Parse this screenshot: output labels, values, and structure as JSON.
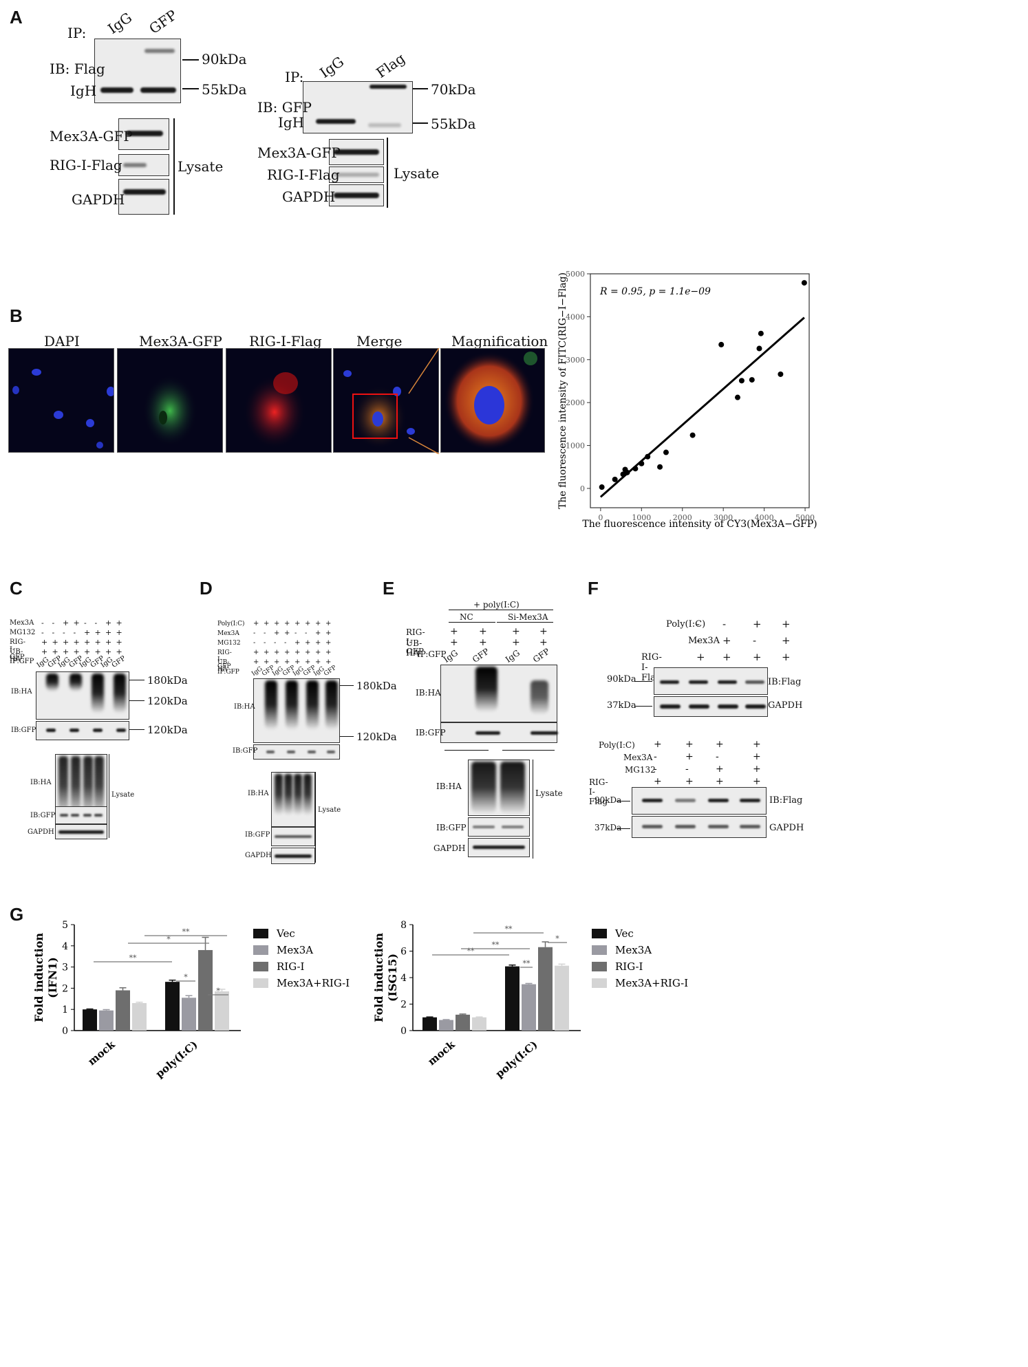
{
  "panel_labels": {
    "A": "A",
    "B": "B",
    "C": "C",
    "D": "D",
    "E": "E",
    "F": "F",
    "G": "G"
  },
  "panelA_left": {
    "ip_label": "IP:",
    "lanes": [
      "IgG",
      "GFP"
    ],
    "ib": "IB: Flag",
    "igh": "IgH",
    "mw_top": "90kDa",
    "mw_bottom": "55kDa",
    "lysate_rows": [
      "Mex3A-GFP",
      "RIG-I-Flag",
      "GAPDH"
    ],
    "lysate": "Lysate"
  },
  "panelA_right": {
    "ip_label": "IP:",
    "lanes": [
      "IgG",
      "Flag"
    ],
    "ib": "IB: GFP",
    "igh": "IgH",
    "mw_top": "70kDa",
    "mw_bottom": "55kDa",
    "lysate_rows": [
      "Mex3A-GFP",
      "RIG-I-Flag",
      "GAPDH"
    ],
    "lysate": "Lysate"
  },
  "panelB": {
    "titles": [
      "DAPI",
      "Mex3A-GFP",
      "RIG-I-Flag",
      "Merge",
      "Magnification"
    ]
  },
  "panelC": {
    "row_labels": [
      "Mex3A",
      "MG132",
      "RIG-I-GFP",
      "UB-HA",
      "IP:GFP"
    ],
    "signs": [
      [
        "-",
        "-",
        "+",
        "+",
        "-",
        "-",
        "+",
        "+"
      ],
      [
        "-",
        "-",
        "-",
        "-",
        "+",
        "+",
        "+",
        "+"
      ],
      [
        "+",
        "+",
        "+",
        "+",
        "+",
        "+",
        "+",
        "+"
      ],
      [
        "+",
        "+",
        "+",
        "+",
        "+",
        "+",
        "+",
        "+"
      ]
    ],
    "ip_lanes": [
      "IgG",
      "GFP",
      "IgG",
      "GFP",
      "IgG",
      "GFP",
      "IgG",
      "GFP"
    ],
    "blots": [
      "IB:HA",
      "IB:GFP"
    ],
    "mw": [
      "180kDa",
      "120kDa",
      "120kDa"
    ],
    "lysate_blots": [
      "IB:HA",
      "IB:GFP",
      "GAPDH"
    ],
    "lysate": "Lysate"
  },
  "panelD": {
    "row_labels": [
      "Poly(I:C)",
      "Mex3A",
      "MG132",
      "RIG-I-GFP",
      "UB-HA",
      "IP:GFP"
    ],
    "signs": [
      [
        "+",
        "+",
        "+",
        "+",
        "+",
        "+",
        "+",
        "+"
      ],
      [
        "-",
        "-",
        "+",
        "+",
        "-",
        "-",
        "+",
        "+"
      ],
      [
        "-",
        "-",
        "-",
        "-",
        "+",
        "+",
        "+",
        "+"
      ],
      [
        "+",
        "+",
        "+",
        "+",
        "+",
        "+",
        "+",
        "+"
      ],
      [
        "+",
        "+",
        "+",
        "+",
        "+",
        "+",
        "+",
        "+"
      ]
    ],
    "ip_lanes": [
      "IgG",
      "GFP",
      "IgG",
      "GFP",
      "IgG",
      "GFP",
      "IgG",
      "GFP"
    ],
    "blots": [
      "IB:HA",
      "IB:GFP"
    ],
    "mw": [
      "180kDa",
      "120kDa"
    ],
    "lysate_blots": [
      "IB:HA",
      "IB:GFP",
      "GAPDH"
    ],
    "lysate": "Lysate"
  },
  "panelE": {
    "treatment": "+ poly(I:C)",
    "groups": [
      "NC",
      "Si-Mex3A"
    ],
    "row_labels": [
      "RIG-I-GFP",
      "UB-HA",
      "IP:GFP"
    ],
    "signs": [
      [
        "+",
        "+",
        "+",
        "+"
      ],
      [
        "+",
        "+",
        "+",
        "+"
      ]
    ],
    "ip_lanes": [
      "IgG",
      "GFP",
      "IgG",
      "GFP"
    ],
    "blots": [
      "IB:HA",
      "IB:GFP"
    ],
    "lysate_blots": [
      "IB:HA",
      "IB:GFP",
      "GAPDH"
    ],
    "lysate": "Lysate"
  },
  "panelF_top": {
    "row_labels": [
      "Poly(I:C)",
      "Mex3A",
      "RIG-I-Flag"
    ],
    "signs": [
      [
        "-",
        "-",
        "+",
        "+"
      ],
      [
        "-",
        "+",
        "-",
        "+"
      ],
      [
        "+",
        "+",
        "+",
        "+"
      ]
    ],
    "mw": [
      "90kDa",
      "37kDa"
    ],
    "blots": [
      "IB:Flag",
      "GAPDH"
    ]
  },
  "panelF_bottom": {
    "row_labels": [
      "Poly(I:C)",
      "Mex3A",
      "MG132",
      "RIG-I-Flag"
    ],
    "signs": [
      [
        "+",
        "+",
        "+",
        "+"
      ],
      [
        "-",
        "+",
        "-",
        "+"
      ],
      [
        "-",
        "-",
        "+",
        "+"
      ],
      [
        "+",
        "+",
        "+",
        "+"
      ]
    ],
    "mw": [
      "90kDa",
      "37kDa"
    ],
    "blots": [
      "IB:Flag",
      "GAPDH"
    ]
  },
  "colors": {
    "vec": "#111111",
    "mex3a": "#9a9aa2",
    "rigi": "#6e6e6e",
    "mex3a_rigi": "#d4d4d4",
    "dot": "#000000"
  },
  "chart_data": [
    {
      "type": "scatter",
      "title": "",
      "annotation": "R = 0.95, p = 1.1e−09",
      "xlabel": "The fluorescence intensity of CY3(Mex3A−GFP)",
      "ylabel": "The fluorescence intensity of FITC(RIG−I−Flag)",
      "xlim": [
        -250,
        5100
      ],
      "ylim": [
        -450,
        5000
      ],
      "xticks": [
        0,
        1000,
        2000,
        3000,
        4000,
        5000
      ],
      "yticks": [
        0,
        1000,
        2000,
        3000,
        4000,
        5000
      ],
      "points": [
        [
          30,
          30
        ],
        [
          350,
          210
        ],
        [
          550,
          330
        ],
        [
          600,
          440
        ],
        [
          650,
          370
        ],
        [
          850,
          460
        ],
        [
          1000,
          580
        ],
        [
          1150,
          740
        ],
        [
          1450,
          500
        ],
        [
          1600,
          840
        ],
        [
          2250,
          1240
        ],
        [
          2950,
          3350
        ],
        [
          3350,
          2120
        ],
        [
          3450,
          2510
        ],
        [
          3700,
          2530
        ],
        [
          3880,
          3260
        ],
        [
          3920,
          3610
        ],
        [
          4400,
          2660
        ],
        [
          4980,
          4790
        ]
      ],
      "fit_line": [
        [
          0,
          -200
        ],
        [
          4980,
          3980
        ]
      ]
    },
    {
      "type": "bar",
      "ylabel": "Fold induction (IFN1)",
      "categories": [
        "mock",
        "poly(I:C)"
      ],
      "ylim": [
        0,
        5
      ],
      "yticks": [
        0,
        1,
        2,
        3,
        4,
        5
      ],
      "legend": [
        "Vec",
        "Mex3A",
        "RIG-I",
        "Mex3A+RIG-I"
      ],
      "series": [
        {
          "name": "Vec",
          "values": [
            1.0,
            2.3
          ],
          "errors": [
            0.02,
            0.08
          ]
        },
        {
          "name": "Mex3A",
          "values": [
            0.95,
            1.55
          ],
          "errors": [
            0.04,
            0.1
          ]
        },
        {
          "name": "RIG-I",
          "values": [
            1.9,
            3.8
          ],
          "errors": [
            0.12,
            0.6
          ]
        },
        {
          "name": "Mex3A+RIG-I",
          "values": [
            1.3,
            1.85
          ],
          "errors": [
            0.04,
            0.1
          ]
        }
      ],
      "significance": [
        "**",
        "*",
        "**",
        "*",
        "*"
      ]
    },
    {
      "type": "bar",
      "ylabel": "Fold induction (ISG15)",
      "categories": [
        "mock",
        "poly(I:C)"
      ],
      "ylim": [
        0,
        8
      ],
      "yticks": [
        0,
        2,
        4,
        6,
        8
      ],
      "legend": [
        "Vec",
        "Mex3A",
        "RIG-I",
        "Mex3A+RIG-I"
      ],
      "series": [
        {
          "name": "Vec",
          "values": [
            1.0,
            4.85
          ],
          "errors": [
            0.03,
            0.1
          ]
        },
        {
          "name": "Mex3A",
          "values": [
            0.8,
            3.5
          ],
          "errors": [
            0.03,
            0.06
          ]
        },
        {
          "name": "RIG-I",
          "values": [
            1.2,
            6.3
          ],
          "errors": [
            0.05,
            0.4
          ]
        },
        {
          "name": "Mex3A+RIG-I",
          "values": [
            1.0,
            4.9
          ],
          "errors": [
            0.03,
            0.12
          ]
        }
      ],
      "significance": [
        "**",
        "**",
        "**",
        "**",
        "*"
      ]
    }
  ]
}
